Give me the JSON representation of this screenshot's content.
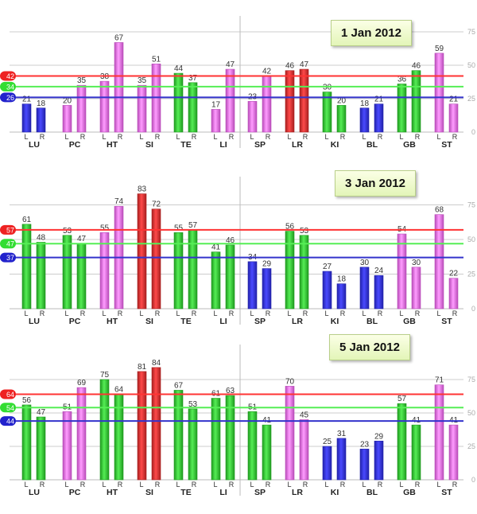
{
  "colors": {
    "B": "#3333dd",
    "P": "#e77be8",
    "G": "#33cc33",
    "R": "#e53333",
    "red_line": "#ff3333",
    "green_line": "#55ee55",
    "blue_line": "#3333cc",
    "grid": "#cccccc"
  },
  "chart_data": [
    {
      "type": "bar",
      "title": "1 Jan 2012",
      "ylim": [
        0,
        75
      ],
      "yticks": [
        0,
        25,
        50,
        75
      ],
      "thresholds": {
        "red": 42,
        "green": 34,
        "blue": 26
      },
      "categories": [
        "LU",
        "PC",
        "HT",
        "SI",
        "TE",
        "LI",
        "SP",
        "LR",
        "KI",
        "BL",
        "GB",
        "ST"
      ],
      "sub_labels": [
        "L",
        "R"
      ],
      "series": [
        {
          "name": "L",
          "values": [
            21,
            20,
            38,
            35,
            44,
            17,
            23,
            46,
            30,
            18,
            36,
            59
          ]
        },
        {
          "name": "R",
          "values": [
            18,
            35,
            67,
            51,
            37,
            47,
            42,
            47,
            20,
            21,
            46,
            21
          ]
        }
      ],
      "bar_colors": [
        [
          "B",
          "B"
        ],
        [
          "P",
          "P"
        ],
        [
          "P",
          "P"
        ],
        [
          "P",
          "P"
        ],
        [
          "G",
          "G"
        ],
        [
          "P",
          "P"
        ],
        [
          "P",
          "P"
        ],
        [
          "R",
          "R"
        ],
        [
          "G",
          "G"
        ],
        [
          "B",
          "B"
        ],
        [
          "G",
          "G"
        ],
        [
          "P",
          "P"
        ]
      ]
    },
    {
      "type": "bar",
      "title": "3 Jan 2012",
      "ylim": [
        0,
        75
      ],
      "yticks": [
        0,
        25,
        50,
        75
      ],
      "thresholds": {
        "red": 57,
        "green": 47,
        "blue": 37
      },
      "categories": [
        "LU",
        "PC",
        "HT",
        "SI",
        "TE",
        "LI",
        "SP",
        "LR",
        "KI",
        "BL",
        "GB",
        "ST"
      ],
      "sub_labels": [
        "L",
        "R"
      ],
      "series": [
        {
          "name": "L",
          "values": [
            61,
            53,
            55,
            83,
            55,
            41,
            34,
            56,
            27,
            30,
            54,
            68
          ]
        },
        {
          "name": "R",
          "values": [
            48,
            47,
            74,
            72,
            57,
            46,
            29,
            53,
            18,
            24,
            30,
            22
          ]
        }
      ],
      "bar_colors": [
        [
          "G",
          "G"
        ],
        [
          "G",
          "G"
        ],
        [
          "P",
          "P"
        ],
        [
          "R",
          "R"
        ],
        [
          "G",
          "G"
        ],
        [
          "G",
          "G"
        ],
        [
          "B",
          "B"
        ],
        [
          "G",
          "G"
        ],
        [
          "B",
          "B"
        ],
        [
          "B",
          "B"
        ],
        [
          "P",
          "P"
        ],
        [
          "P",
          "P"
        ]
      ]
    },
    {
      "type": "bar",
      "title": "5 Jan 2012",
      "ylim": [
        0,
        75
      ],
      "yticks": [
        0,
        25,
        50,
        75
      ],
      "thresholds": {
        "red": 64,
        "green": 54,
        "blue": 44
      },
      "categories": [
        "LU",
        "PC",
        "HT",
        "SI",
        "TE",
        "LI",
        "SP",
        "LR",
        "KI",
        "BL",
        "GB",
        "ST"
      ],
      "sub_labels": [
        "L",
        "R"
      ],
      "series": [
        {
          "name": "L",
          "values": [
            56,
            51,
            75,
            81,
            67,
            61,
            51,
            70,
            25,
            23,
            57,
            71
          ]
        },
        {
          "name": "R",
          "values": [
            47,
            69,
            64,
            84,
            53,
            63,
            41,
            45,
            31,
            29,
            41,
            41
          ]
        }
      ],
      "bar_colors": [
        [
          "G",
          "G"
        ],
        [
          "P",
          "P"
        ],
        [
          "G",
          "G"
        ],
        [
          "R",
          "R"
        ],
        [
          "G",
          "G"
        ],
        [
          "G",
          "G"
        ],
        [
          "G",
          "G"
        ],
        [
          "P",
          "P"
        ],
        [
          "B",
          "B"
        ],
        [
          "B",
          "B"
        ],
        [
          "G",
          "G"
        ],
        [
          "P",
          "P"
        ]
      ]
    }
  ]
}
